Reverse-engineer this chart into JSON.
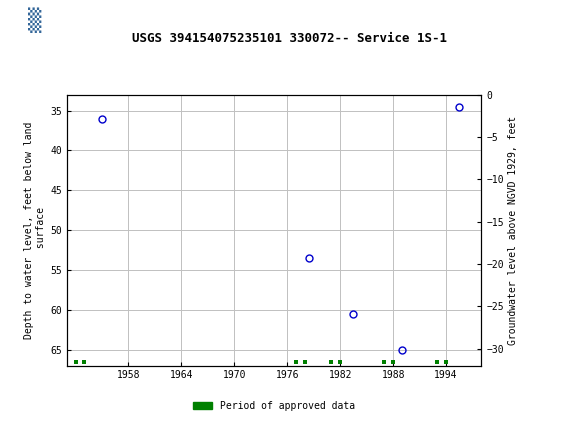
{
  "title": "USGS 394154075235101 330072-- Service 1S-1",
  "ylabel_left": "Depth to water level, feet below land\n surface",
  "ylabel_right": "Groundwater level above NGVD 1929, feet",
  "data_years": [
    1955.0,
    1978.5,
    1983.5,
    1989.0,
    1995.5
  ],
  "data_depth": [
    36.0,
    53.5,
    60.5,
    65.0,
    34.5
  ],
  "xlim": [
    1951,
    1998
  ],
  "ylim_left_top": 33,
  "ylim_left_bottom": 67,
  "ylim_right_top": 0,
  "ylim_right_bottom": -32,
  "xticks": [
    1958,
    1964,
    1970,
    1976,
    1982,
    1988,
    1994
  ],
  "yticks_left": [
    35,
    40,
    45,
    50,
    55,
    60,
    65
  ],
  "yticks_right": [
    0,
    -5,
    -10,
    -15,
    -20,
    -25,
    -30
  ],
  "point_color": "#0000cc",
  "approved_data_x": [
    1952,
    1953,
    1977,
    1978,
    1981,
    1982,
    1987,
    1988,
    1993,
    1994
  ],
  "approved_color": "#008000",
  "approved_y": 66.5,
  "header_color": "#006633",
  "bg_color": "#ffffff",
  "grid_color": "#c0c0c0",
  "marker_size": 5,
  "marker_linewidth": 1.0,
  "title_fontsize": 9,
  "tick_fontsize": 7,
  "label_fontsize": 7
}
